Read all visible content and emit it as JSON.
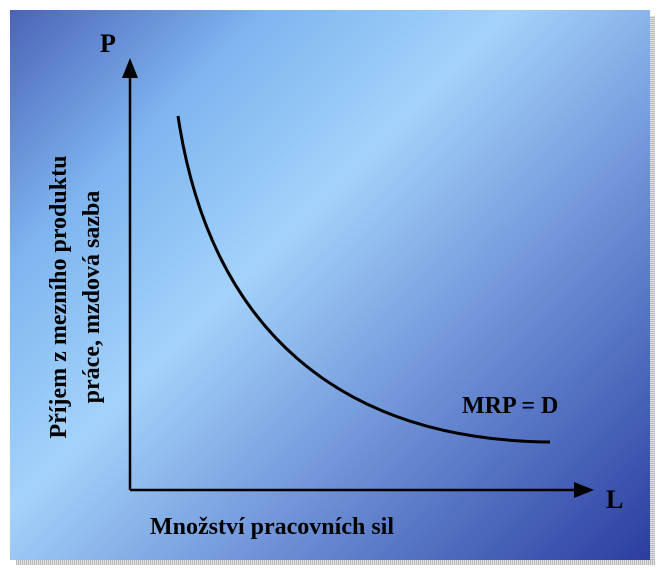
{
  "diagram": {
    "y_axis_symbol": "P",
    "x_axis_symbol": "L",
    "y_axis_label_line1": "Příjem z mezního produktu",
    "y_axis_label_line2": "práce, mzdová sazba",
    "x_axis_label": "Množství pracovních sil",
    "curve_label": "MRP = D"
  },
  "colors": {
    "background_gradient": [
      "#4b63b8",
      "#7fb6f0",
      "#a3d2fb",
      "#6b8fd5",
      "#2b3da0"
    ],
    "ink": "#000000"
  }
}
